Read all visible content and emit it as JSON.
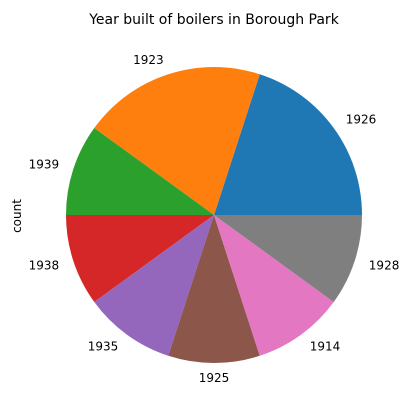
{
  "chart_data": {
    "type": "pie",
    "title": "Year built of boilers in Borough Park",
    "ylabel": "count",
    "categories": [
      "1926",
      "1923",
      "1939",
      "1938",
      "1935",
      "1925",
      "1914",
      "1928"
    ],
    "values": [
      2,
      2,
      1,
      1,
      1,
      1,
      1,
      1
    ],
    "colors": [
      "#1f77b4",
      "#ff7f0e",
      "#2ca02c",
      "#d62728",
      "#9467bd",
      "#8c564b",
      "#e377c2",
      "#7f7f7f"
    ],
    "legend": "none"
  }
}
